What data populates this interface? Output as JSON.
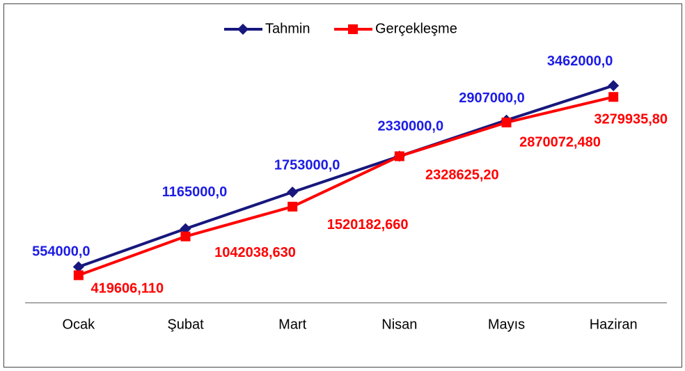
{
  "chart_data": {
    "type": "line",
    "categories": [
      "Ocak",
      "Şubat",
      "Mart",
      "Nisan",
      "Mayıs",
      "Haziran"
    ],
    "series": [
      {
        "name": "Tahmin",
        "color": "#17177d",
        "label_color": "#1c1ce6",
        "values": [
          554000,
          1165000,
          1753000,
          2330000,
          2907000,
          3462000
        ],
        "value_labels": [
          "554000,0",
          "1165000,0",
          "1753000,0",
          "2330000,0",
          "2907000,0",
          "3462000,0"
        ]
      },
      {
        "name": "Gerçekleşme",
        "color": "#ff0000",
        "label_color": "#ff0000",
        "values": [
          419606.11,
          1042038.63,
          1520182.66,
          2328625.2,
          2870072.48,
          3279935.8
        ],
        "value_labels": [
          "419606,110",
          "1042038,630",
          "1520182,660",
          "2328625,20",
          "2870072,480",
          "3279935,80"
        ]
      }
    ],
    "ylim": [
      0,
      4500000
    ],
    "legend": "top"
  }
}
